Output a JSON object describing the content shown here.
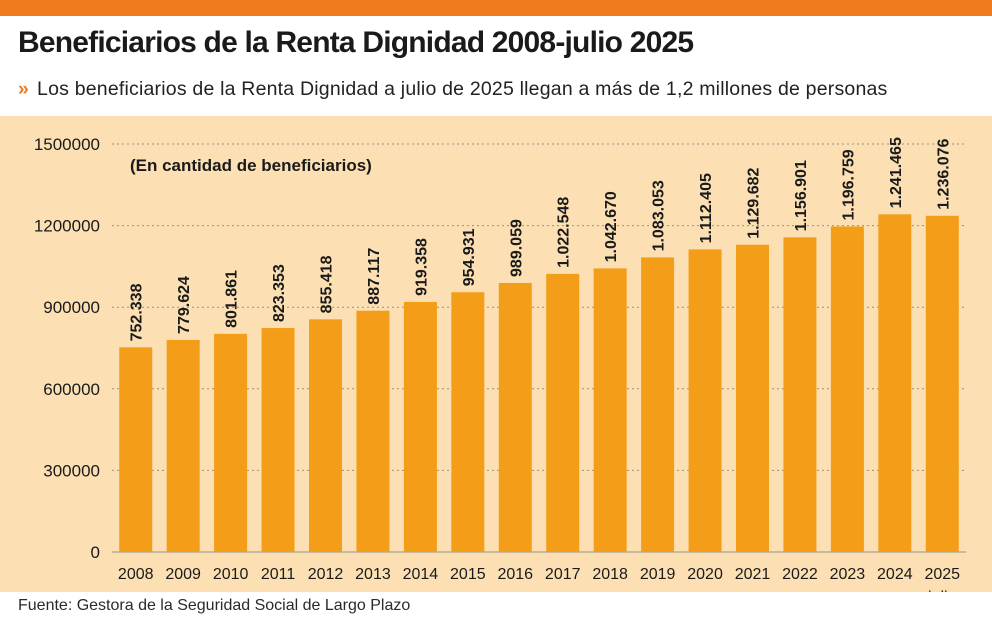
{
  "header": {
    "title": "Beneficiarios de la Renta Dignidad 2008-julio 2025",
    "subtitle": "Los beneficiarios de la Renta Dignidad a julio de 2025 llegan a más de 1,2 millones de personas",
    "subtitle_marker": "»"
  },
  "footer": {
    "source": "Fuente: Gestora de la Seguridad Social de Largo Plazo"
  },
  "colors": {
    "accent": "#f07a1e",
    "bar": "#f49d19",
    "background": "#fce0b3"
  },
  "chart_data": {
    "type": "bar",
    "annotation": "(En cantidad de beneficiarios)",
    "categories": [
      "2008",
      "2009",
      "2010",
      "2011",
      "2012",
      "2013",
      "2014",
      "2015",
      "2016",
      "2017",
      "2018",
      "2019",
      "2020",
      "2021",
      "2022",
      "2023",
      "2024",
      "2025"
    ],
    "category_sublabels": {
      "2025": "julio"
    },
    "values": [
      752338,
      779624,
      801861,
      823353,
      855418,
      887117,
      919358,
      954931,
      989059,
      1022548,
      1042670,
      1083053,
      1112405,
      1129682,
      1156901,
      1196759,
      1241465,
      1236076
    ],
    "value_labels": [
      "752.338",
      "779.624",
      "801.861",
      "823.353",
      "855.418",
      "887.117",
      "919.358",
      "954.931",
      "989.059",
      "1.022.548",
      "1.042.670",
      "1.083.053",
      "1.112.405",
      "1.129.682",
      "1.156.901",
      "1.196.759",
      "1.241.465",
      "1.236.076"
    ],
    "yticks": [
      0,
      300000,
      600000,
      900000,
      1200000,
      1500000
    ],
    "ytick_labels": [
      "0",
      "300000",
      "600000",
      "900000",
      "1200000",
      "1500000"
    ],
    "ylim": [
      0,
      1500000
    ],
    "grid": "horizontal dashed"
  }
}
